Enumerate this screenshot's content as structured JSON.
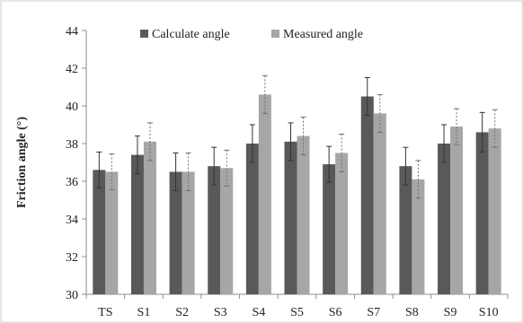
{
  "chart_data": {
    "type": "bar",
    "title": "",
    "xlabel": "",
    "ylabel": "Friction angle (°)",
    "ylim": [
      30,
      44
    ],
    "yticks": [
      30,
      32,
      34,
      36,
      38,
      40,
      42,
      44
    ],
    "grid": false,
    "legend_position": "top",
    "categories": [
      "TS",
      "S1",
      "S2",
      "S3",
      "S4",
      "S5",
      "S6",
      "S7",
      "S8",
      "S9",
      "S10"
    ],
    "series": [
      {
        "name": "Calculate angle",
        "color": "#595959",
        "values": [
          36.6,
          37.4,
          36.5,
          36.8,
          38.0,
          38.1,
          36.9,
          40.5,
          36.8,
          38.0,
          38.6
        ],
        "errors": [
          0.95,
          1.0,
          1.0,
          1.0,
          1.0,
          1.0,
          0.95,
          1.0,
          1.0,
          1.0,
          1.05
        ]
      },
      {
        "name": "Measured angle",
        "color": "#a6a6a6",
        "values": [
          36.5,
          38.1,
          36.5,
          36.7,
          40.6,
          38.4,
          37.5,
          39.6,
          36.1,
          38.9,
          38.8
        ],
        "errors": [
          0.95,
          1.0,
          1.0,
          0.95,
          1.0,
          1.0,
          1.0,
          1.0,
          1.0,
          0.95,
          1.0
        ]
      }
    ]
  }
}
